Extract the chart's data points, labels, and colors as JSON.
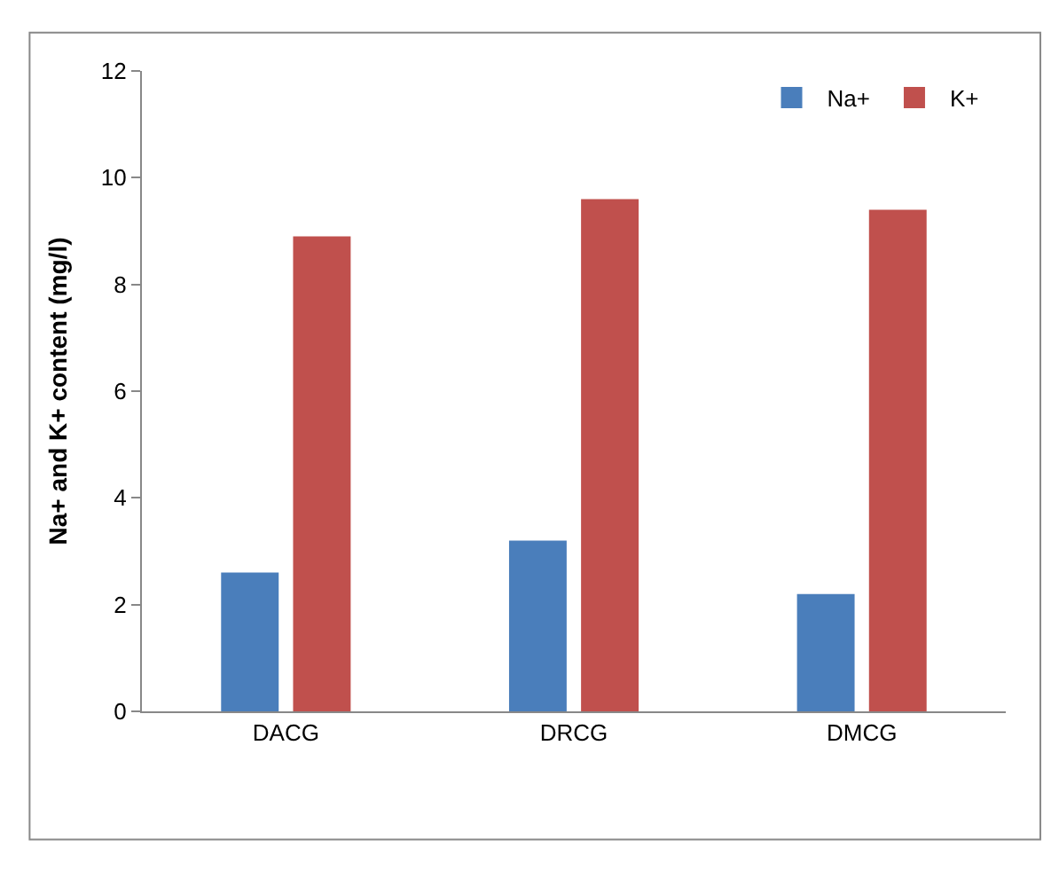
{
  "chart_data": {
    "type": "bar",
    "ylabel": "Na+ and K+ content (mg/l)",
    "categories": [
      "DACG",
      "DRCG",
      "DMCG"
    ],
    "series": [
      {
        "name": "Na+",
        "color": "#4a7ebb",
        "values": [
          2.6,
          3.2,
          2.2
        ]
      },
      {
        "name": "K+",
        "color": "#c0504d",
        "values": [
          8.9,
          9.6,
          9.4
        ]
      }
    ],
    "ylim": [
      0,
      12
    ],
    "yticks": [
      0,
      2,
      4,
      6,
      8,
      10,
      12
    ],
    "grid": false,
    "legend": "top right"
  }
}
